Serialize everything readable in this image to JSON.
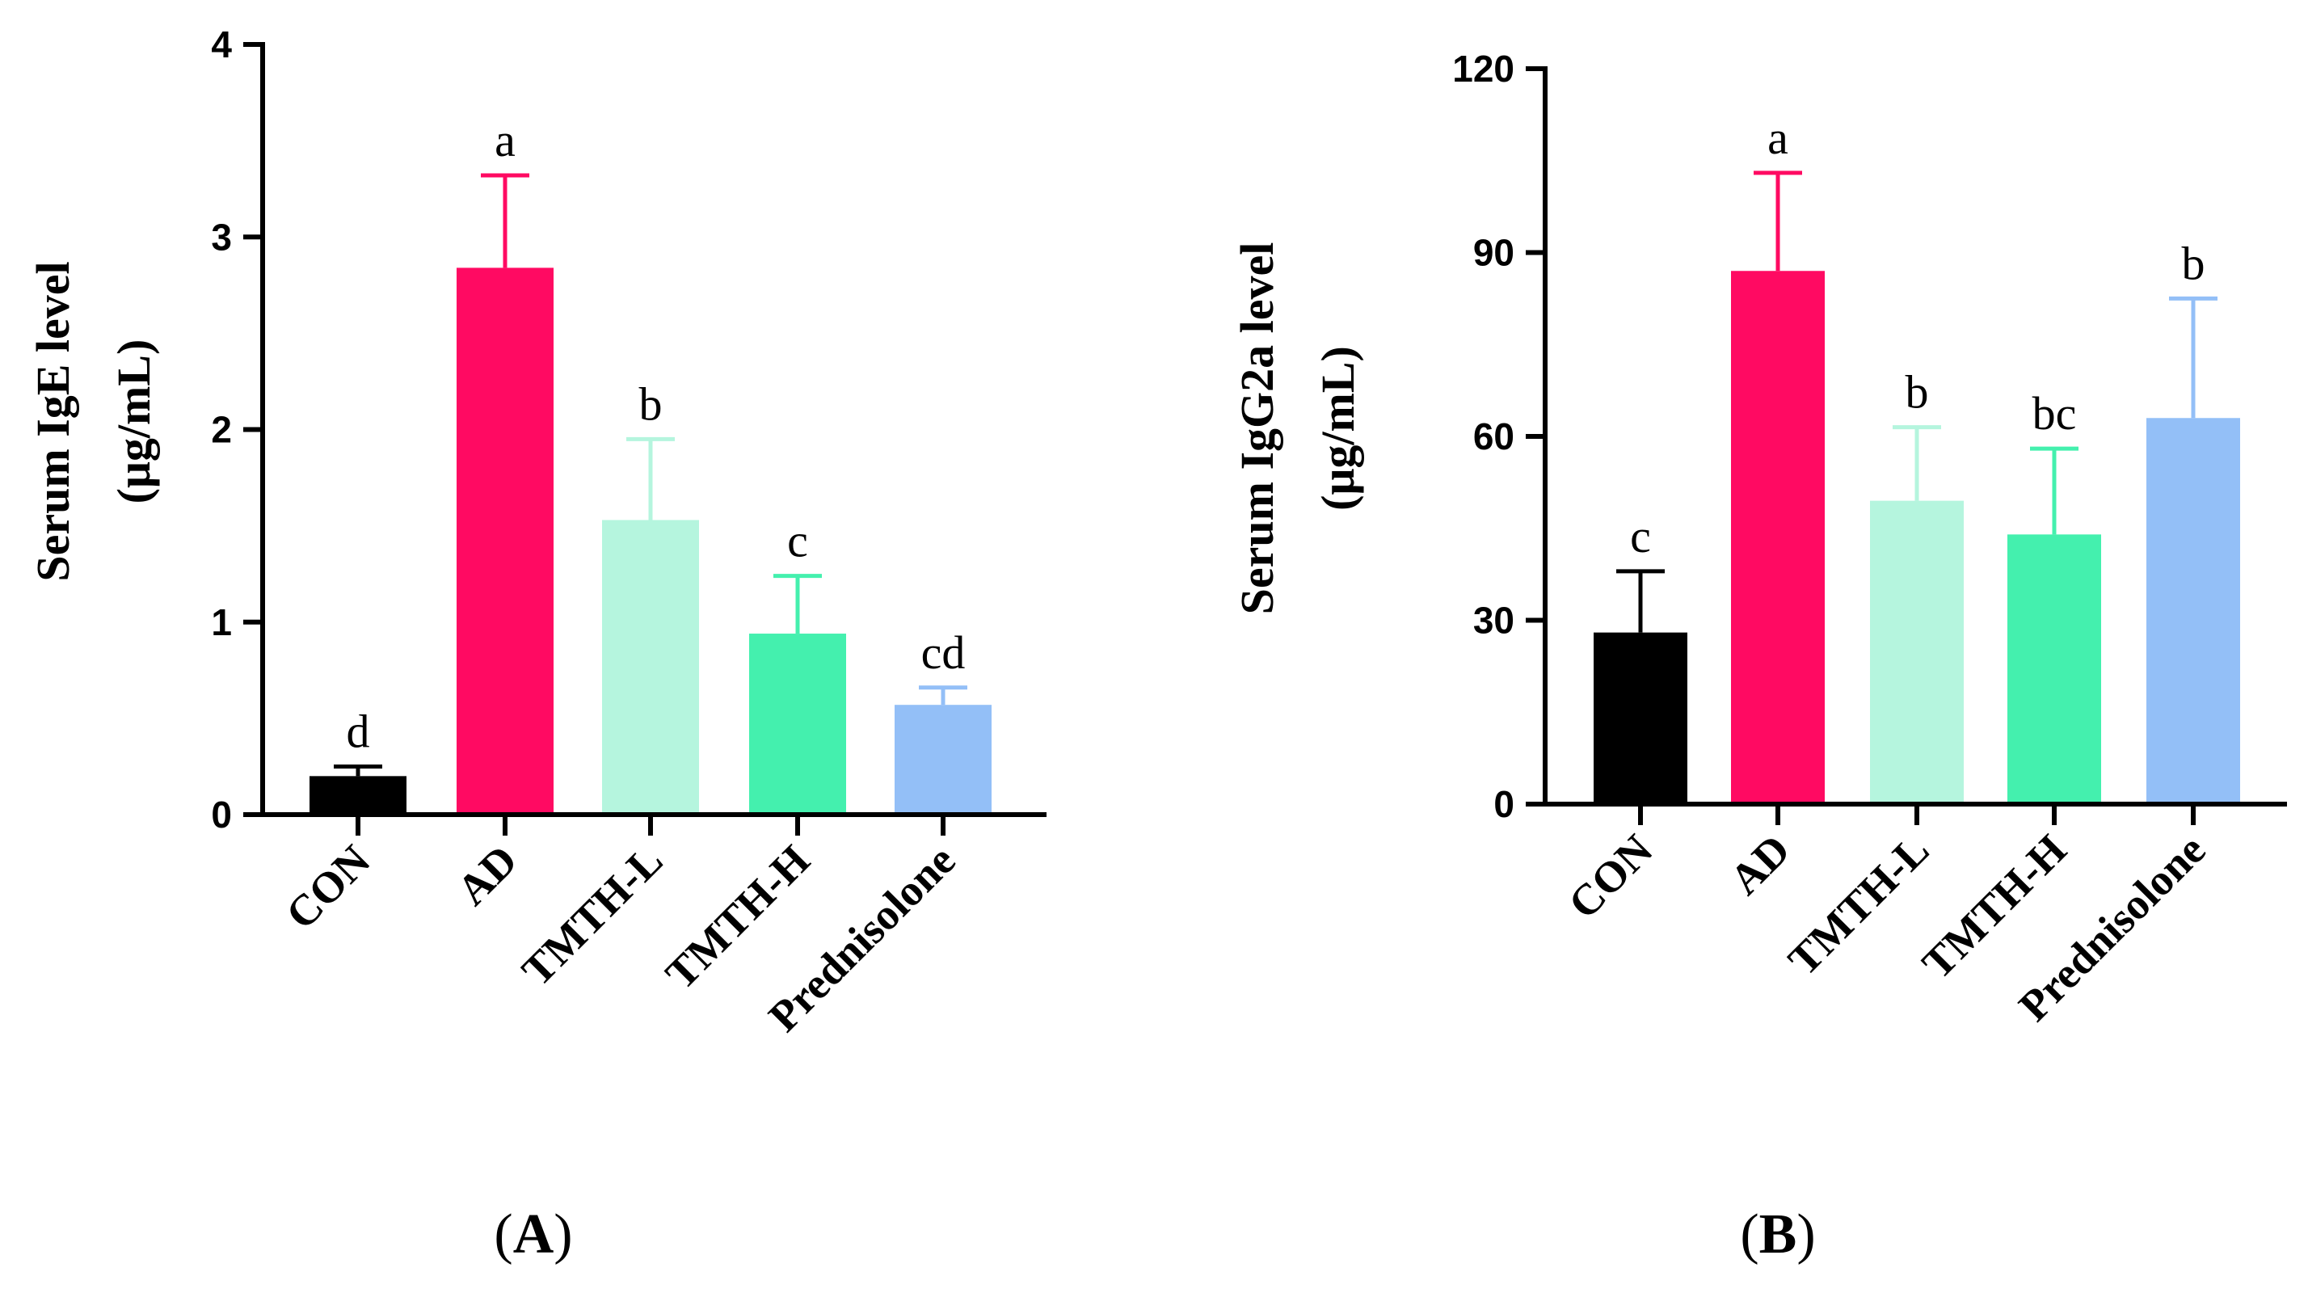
{
  "chart_data": [
    {
      "type": "bar",
      "panel_label": "A",
      "ylabel_line1": "Serum IgE level",
      "ylabel_line2": "(μg/mL)",
      "categories": [
        "CON",
        "AD",
        "TMTH-L",
        "TMTH-H",
        "Prednisolone"
      ],
      "values": [
        0.2,
        2.84,
        1.53,
        0.94,
        0.57
      ],
      "errors": [
        0.05,
        0.48,
        0.42,
        0.3,
        0.09
      ],
      "significance": [
        "d",
        "a",
        "b",
        "c",
        "cd"
      ],
      "colors": [
        "#000000",
        "#ff0a62",
        "#b5f5de",
        "#44f0ae",
        "#93bff7"
      ],
      "ylim": [
        0,
        4
      ],
      "yticks": [
        0,
        1,
        2,
        3,
        4
      ],
      "ytick_labels": [
        "0",
        "1",
        "2",
        "3",
        "4"
      ]
    },
    {
      "type": "bar",
      "panel_label": "B",
      "ylabel_line1": "Serum IgG2a level",
      "ylabel_line2": "(μg/mL)",
      "categories": [
        "CON",
        "AD",
        "TMTH-L",
        "TMTH-H",
        "Prednisolone"
      ],
      "values": [
        28,
        87,
        49.5,
        44,
        63
      ],
      "errors": [
        10,
        16,
        12,
        14,
        19.5
      ],
      "significance": [
        "c",
        "a",
        "b",
        "bc",
        "b"
      ],
      "colors": [
        "#000000",
        "#ff0a62",
        "#b5f5de",
        "#44f0ae",
        "#93bff7"
      ],
      "ylim": [
        0,
        120
      ],
      "yticks": [
        0,
        30,
        60,
        90,
        120
      ],
      "ytick_labels": [
        "0",
        "30",
        "60",
        "90",
        "120"
      ]
    }
  ]
}
